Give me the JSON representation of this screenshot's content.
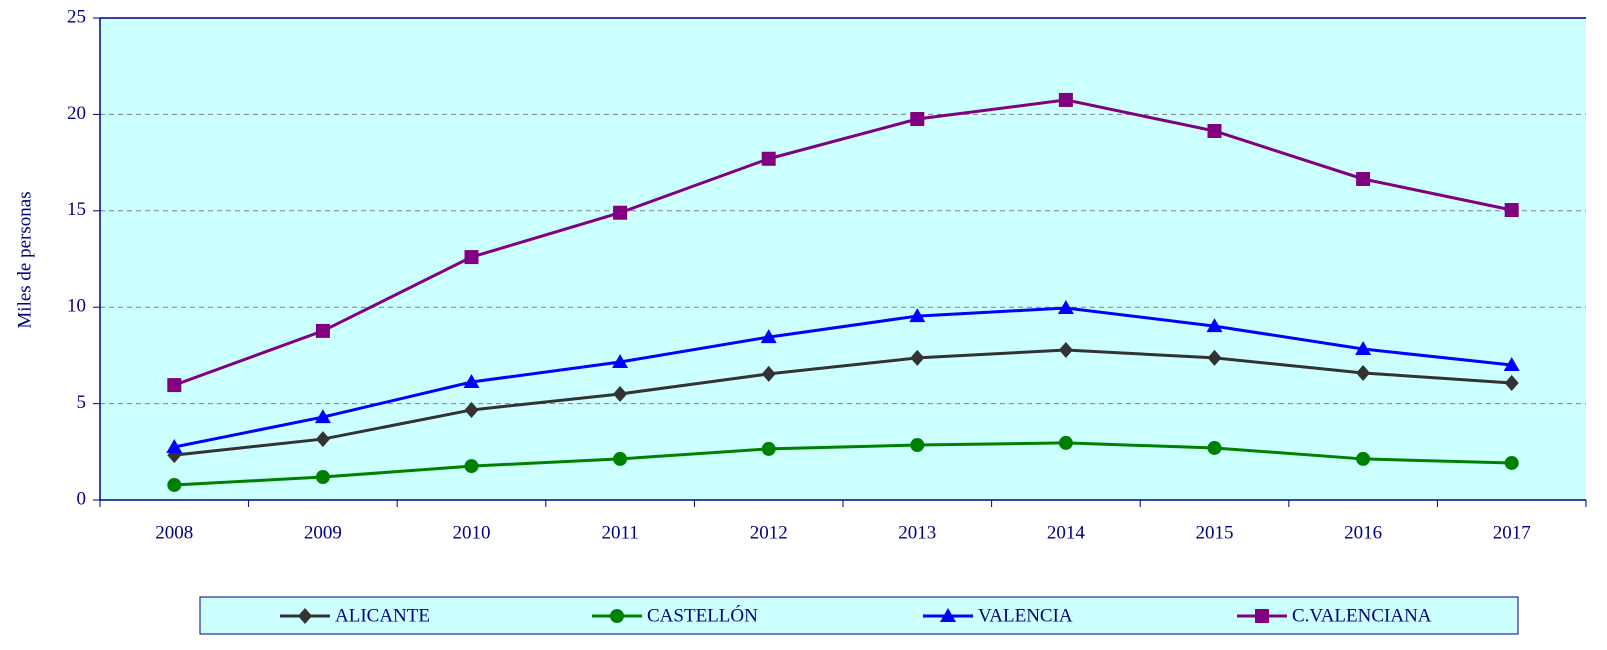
{
  "chart_data": {
    "type": "line",
    "y_label": "Miles de personas",
    "categories": [
      "2008",
      "2009",
      "2010",
      "2011",
      "2012",
      "2013",
      "2014",
      "2015",
      "2016",
      "2017"
    ],
    "series": [
      {
        "name": "ALICANTE",
        "color": "#333333",
        "marker": "diamond",
        "values": [
          2.33,
          3.16,
          4.67,
          5.5,
          6.54,
          7.37,
          7.78,
          7.37,
          6.59,
          6.07
        ]
      },
      {
        "name": "CASTELLÓN",
        "color": "#008000",
        "marker": "circle",
        "values": [
          0.78,
          1.19,
          1.76,
          2.13,
          2.65,
          2.85,
          2.96,
          2.7,
          2.13,
          1.92
        ]
      },
      {
        "name": "VALENCIA",
        "color": "#0000ff",
        "marker": "triangle",
        "values": [
          2.75,
          4.3,
          6.12,
          7.16,
          8.45,
          9.54,
          9.96,
          9.02,
          7.83,
          7.0
        ]
      },
      {
        "name": "C.VALENCIANA",
        "color": "#800080",
        "marker": "square",
        "values": [
          5.96,
          8.77,
          12.6,
          14.9,
          17.7,
          19.76,
          20.75,
          19.14,
          16.65,
          15.04
        ]
      }
    ],
    "ylim": [
      0,
      25
    ],
    "yticks": [
      0,
      5,
      10,
      15,
      20,
      25
    ],
    "grid": true,
    "plot_background": "#ccffff",
    "legend": "bottom"
  }
}
